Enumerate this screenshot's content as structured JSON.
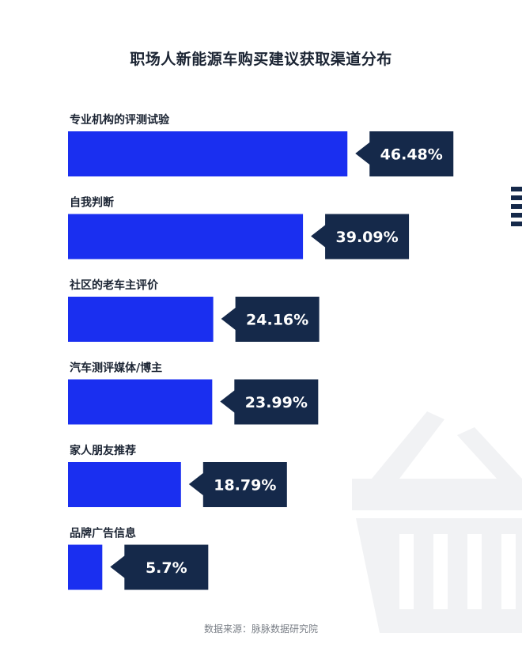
{
  "colors": {
    "bar": "#1a2ff0",
    "label_box": "#15294a",
    "label_text": "#ffffff",
    "category_text": "#1b2433",
    "title_text": "#1b2433",
    "background_graphic": "#f1f2f4",
    "stripe": "#15294a"
  },
  "chart_data": {
    "type": "bar",
    "orientation": "horizontal",
    "title": "职场人新能源车购买建议获取渠道分布",
    "categories": [
      "专业机构的评测试验",
      "自我判断",
      "社区的老车主评价",
      "汽车测评媒体/博主",
      "家人朋友推荐",
      "品牌广告信息"
    ],
    "values": [
      46.48,
      39.09,
      24.16,
      23.99,
      18.79,
      5.7
    ],
    "value_labels": [
      "46.48%",
      "39.09%",
      "24.16%",
      "23.99%",
      "18.79%",
      "5.7%"
    ],
    "unit": "%",
    "grid": false,
    "legend": "none",
    "xlim": [
      0,
      50
    ]
  },
  "source": "数据来源：脉脉数据研究院",
  "icons": [
    "shopping-basket-icon"
  ]
}
